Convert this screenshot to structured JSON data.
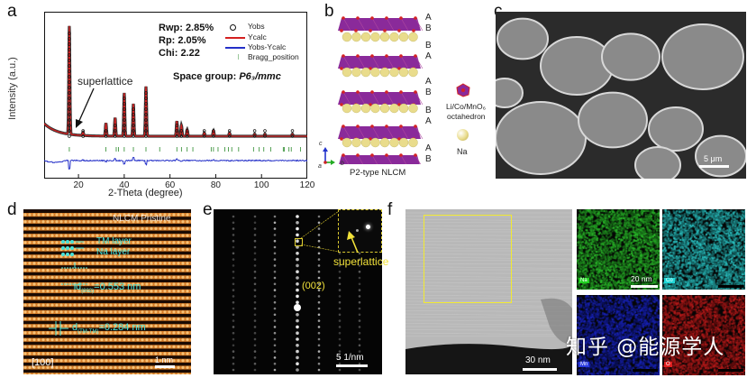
{
  "figure": {
    "panels": {
      "a": {
        "label": "a"
      },
      "b": {
        "label": "b"
      },
      "c": {
        "label": "c"
      },
      "d": {
        "label": "d"
      },
      "e": {
        "label": "e"
      },
      "f": {
        "label": "f"
      }
    }
  },
  "chart_data": {
    "type": "line",
    "title": "",
    "xlabel": "2-Theta (degree)",
    "ylabel": "Intensity (a.u.)",
    "xlim": [
      5,
      120
    ],
    "xticks": [
      20,
      40,
      60,
      80,
      100,
      120
    ],
    "grid": false,
    "legend_position": "upper right",
    "legend": [
      "Yobs",
      "Ycalc",
      "Yobs-Ycalc",
      "Bragg_position"
    ],
    "stats": {
      "rwp": "Rwp: 2.85%",
      "rp": "Rp: 2.05%",
      "chi": "Chi: 2.22"
    },
    "space_group_prefix": "Space group: ",
    "space_group": "P6₃/mmc",
    "annotation": "superlattice",
    "peaks_2theta": [
      16,
      22,
      32,
      36,
      40,
      44,
      49.5,
      63,
      65,
      67.5,
      75,
      79,
      86,
      97,
      101.5,
      113.5
    ],
    "peaks_rel_intensity": [
      1.0,
      0.03,
      0.12,
      0.17,
      0.4,
      0.3,
      0.46,
      0.14,
      0.1,
      0.06,
      0.03,
      0.05,
      0.03,
      0.02,
      0.02,
      0.02
    ],
    "bragg_positions": [
      16,
      32,
      36.5,
      37.5,
      40,
      44,
      49.5,
      55.5,
      63,
      65,
      67.5,
      70,
      78,
      79,
      81,
      84,
      85.5,
      87,
      90,
      96.5,
      99,
      101,
      104,
      109.5,
      110,
      112,
      113,
      117
    ],
    "colors": {
      "yobs": "#111111",
      "ycalc": "#d42020",
      "diff": "#2430c8",
      "bragg": "#2a8a2a"
    }
  },
  "panel_b": {
    "stack_labels": [
      "A",
      "B",
      "B",
      "A",
      "A",
      "B",
      "B",
      "A",
      "A",
      "B"
    ],
    "caption": "P2-type NLCM",
    "axes": {
      "a": "a",
      "b": "b",
      "c": "c"
    },
    "legend_octahedron_1": "Li/Co/MnO₆",
    "legend_octahedron_2": "octahedron",
    "legend_na": "Na",
    "colors": {
      "octahedron": "#8a2a9a",
      "oxygen": "#d42424",
      "na": "#e9dc8c"
    }
  },
  "panel_c": {
    "scale_bar": "5 μm"
  },
  "panel_d": {
    "title": "NLCM Pristine",
    "tm_layer": "TM layer",
    "na_layer": "Na layer",
    "d002_prefix": "d",
    "d002_sub": "(002)",
    "d002_value": "=0.553 nm",
    "dtm_prefix": "d",
    "dtm_sub": "(TM-TM)",
    "dtm_value": "=0.284 nm",
    "zone_axis": "[100]",
    "scale_bar": "1 nm"
  },
  "panel_e": {
    "index": "(002)",
    "annotation": "superlattice",
    "scale_bar": "5 1/nm"
  },
  "panel_f": {
    "scale_bar_main": "30 nm",
    "scale_bar_eds": "20 nm",
    "maps": [
      {
        "element": "Na",
        "color": "#1f8a1f",
        "tag": "#20d020"
      },
      {
        "element": "Co",
        "color": "#1f8f8f",
        "tag": "#20d8d8"
      },
      {
        "element": "Mn",
        "color": "#121a8a",
        "tag": "#2a3ae0"
      },
      {
        "element": "O",
        "color": "#8a1414",
        "tag": "#e02020"
      }
    ]
  },
  "watermark": "知乎 @能源学人"
}
